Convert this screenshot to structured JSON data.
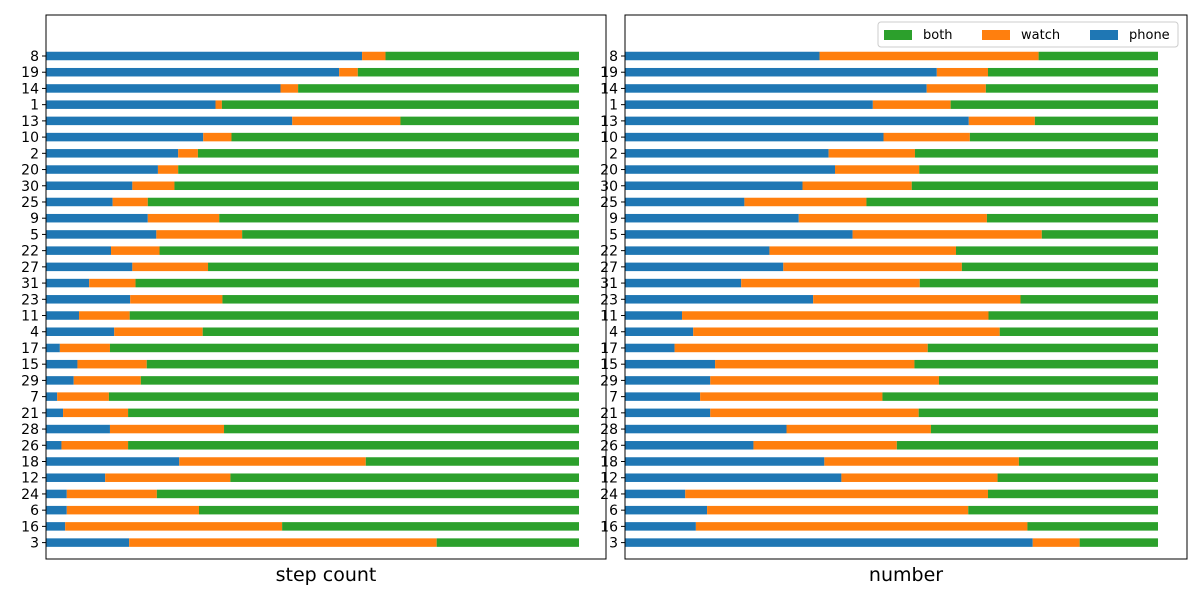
{
  "chart_data": [
    {
      "type": "bar",
      "orientation": "horizontal",
      "stacked": true,
      "normalized": true,
      "xlabel": "step count",
      "ylabel": "",
      "xlim": [
        0,
        1
      ],
      "grid": false,
      "categories": [
        "8",
        "19",
        "14",
        "1",
        "13",
        "10",
        "2",
        "20",
        "30",
        "25",
        "9",
        "5",
        "22",
        "27",
        "31",
        "23",
        "11",
        "4",
        "17",
        "15",
        "29",
        "7",
        "21",
        "28",
        "26",
        "18",
        "12",
        "24",
        "6",
        "16",
        "3"
      ],
      "series": [
        {
          "name": "phone",
          "color": "#1f77b4",
          "values": [
            0.593,
            0.55,
            0.44,
            0.318,
            0.462,
            0.295,
            0.248,
            0.21,
            0.162,
            0.125,
            0.191,
            0.207,
            0.122,
            0.162,
            0.081,
            0.158,
            0.062,
            0.128,
            0.026,
            0.059,
            0.052,
            0.021,
            0.032,
            0.12,
            0.029,
            0.25,
            0.111,
            0.039,
            0.039,
            0.036,
            0.156
          ]
        },
        {
          "name": "watch",
          "color": "#ff7f0e",
          "values": [
            0.044,
            0.035,
            0.033,
            0.012,
            0.203,
            0.053,
            0.037,
            0.038,
            0.079,
            0.066,
            0.134,
            0.161,
            0.091,
            0.142,
            0.087,
            0.173,
            0.095,
            0.166,
            0.094,
            0.13,
            0.126,
            0.097,
            0.122,
            0.214,
            0.125,
            0.35,
            0.235,
            0.169,
            0.248,
            0.407,
            0.577
          ]
        },
        {
          "name": "both",
          "color": "#2ca02c",
          "values": [
            0.363,
            0.415,
            0.527,
            0.67,
            0.335,
            0.652,
            0.715,
            0.752,
            0.759,
            0.809,
            0.675,
            0.632,
            0.787,
            0.696,
            0.832,
            0.669,
            0.843,
            0.706,
            0.88,
            0.811,
            0.822,
            0.882,
            0.846,
            0.666,
            0.846,
            0.4,
            0.654,
            0.792,
            0.713,
            0.557,
            0.267
          ]
        }
      ]
    },
    {
      "type": "bar",
      "orientation": "horizontal",
      "stacked": true,
      "normalized": true,
      "xlabel": "number",
      "ylabel": "",
      "xlim": [
        0,
        1
      ],
      "grid": false,
      "legend": {
        "placement": "top-right",
        "entries": [
          "both",
          "watch",
          "phone"
        ]
      },
      "categories": [
        "8",
        "19",
        "14",
        "1",
        "13",
        "10",
        "2",
        "20",
        "30",
        "25",
        "9",
        "5",
        "22",
        "27",
        "31",
        "23",
        "11",
        "4",
        "17",
        "15",
        "29",
        "7",
        "21",
        "28",
        "26",
        "18",
        "12",
        "24",
        "6",
        "16",
        "3"
      ],
      "series": [
        {
          "name": "phone",
          "color": "#1f77b4",
          "values": [
            0.365,
            0.585,
            0.566,
            0.465,
            0.645,
            0.485,
            0.382,
            0.394,
            0.333,
            0.224,
            0.326,
            0.427,
            0.271,
            0.297,
            0.218,
            0.353,
            0.107,
            0.128,
            0.093,
            0.169,
            0.16,
            0.141,
            0.16,
            0.303,
            0.241,
            0.374,
            0.406,
            0.113,
            0.154,
            0.133,
            0.765
          ]
        },
        {
          "name": "watch",
          "color": "#ff7f0e",
          "values": [
            0.411,
            0.096,
            0.111,
            0.146,
            0.124,
            0.162,
            0.162,
            0.158,
            0.205,
            0.229,
            0.353,
            0.355,
            0.35,
            0.335,
            0.335,
            0.389,
            0.575,
            0.575,
            0.475,
            0.374,
            0.429,
            0.342,
            0.391,
            0.271,
            0.269,
            0.365,
            0.293,
            0.568,
            0.49,
            0.622,
            0.088
          ]
        },
        {
          "name": "both",
          "color": "#2ca02c",
          "values": [
            0.224,
            0.319,
            0.323,
            0.389,
            0.231,
            0.353,
            0.456,
            0.448,
            0.462,
            0.547,
            0.321,
            0.218,
            0.379,
            0.368,
            0.447,
            0.258,
            0.318,
            0.297,
            0.432,
            0.457,
            0.411,
            0.517,
            0.449,
            0.426,
            0.49,
            0.261,
            0.301,
            0.319,
            0.356,
            0.245,
            0.147
          ]
        }
      ]
    }
  ]
}
